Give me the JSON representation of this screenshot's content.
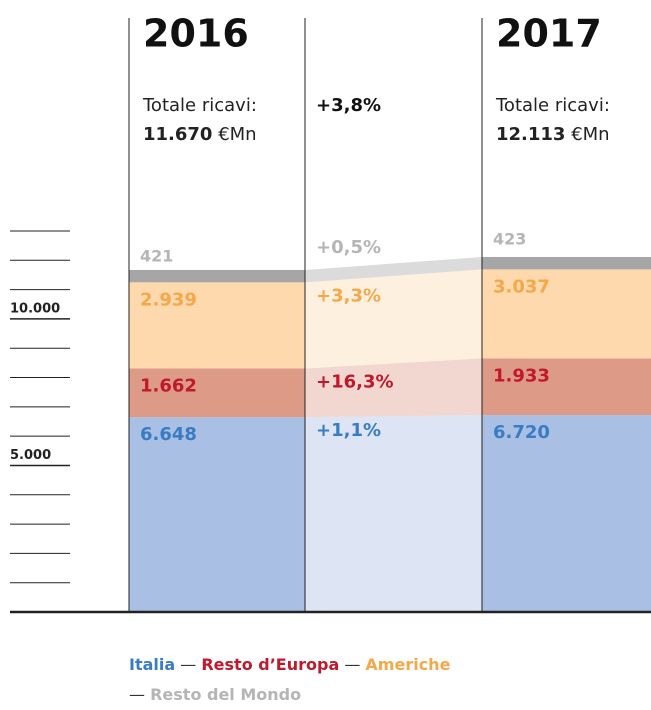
{
  "chart_data": {
    "type": "stacked-bar",
    "categories": [
      "2016",
      "2017"
    ],
    "series": [
      {
        "name": "Italia",
        "color": "#a9bfe4",
        "text_color": "#3a7cc4",
        "values": [
          6648,
          6720
        ],
        "value_labels": [
          "6.648",
          "6.720"
        ],
        "change": "+1,1%"
      },
      {
        "name": "Resto d’Europa",
        "color": "#dd9a86",
        "text_color": "#c0192c",
        "values": [
          1662,
          1933
        ],
        "value_labels": [
          "1.662",
          "1.933"
        ],
        "change": "+16,3%"
      },
      {
        "name": "Americhe",
        "color": "#fdd9ad",
        "text_color": "#f5a84a",
        "values": [
          2939,
          3037
        ],
        "value_labels": [
          "2.939",
          "3.037"
        ],
        "change": "+3,3%"
      },
      {
        "name": "Resto del Mondo",
        "color": "#a6a6a6",
        "text_color": "#b5b5b5",
        "values": [
          421,
          423
        ],
        "value_labels": [
          "421",
          "423"
        ],
        "change": "+0,5%"
      }
    ],
    "totals": [
      {
        "label": "Totale ricavi:",
        "value": "11.670",
        "unit": "€Mn"
      },
      {
        "label": "Totale ricavi:",
        "value": "12.113",
        "unit": "€Mn"
      }
    ],
    "total_change": "+3,8%",
    "ylim": [
      0,
      13000
    ],
    "yticks": [
      {
        "value": 1000,
        "label": null
      },
      {
        "value": 2000,
        "label": null
      },
      {
        "value": 3000,
        "label": null
      },
      {
        "value": 4000,
        "label": null
      },
      {
        "value": 5000,
        "label": "5.000"
      },
      {
        "value": 6000,
        "label": null
      },
      {
        "value": 7000,
        "label": null
      },
      {
        "value": 8000,
        "label": null
      },
      {
        "value": 9000,
        "label": null
      },
      {
        "value": 10000,
        "label": "10.000"
      },
      {
        "value": 11000,
        "label": null
      },
      {
        "value": 12000,
        "label": null
      },
      {
        "value": 13000,
        "label": null
      }
    ]
  }
}
